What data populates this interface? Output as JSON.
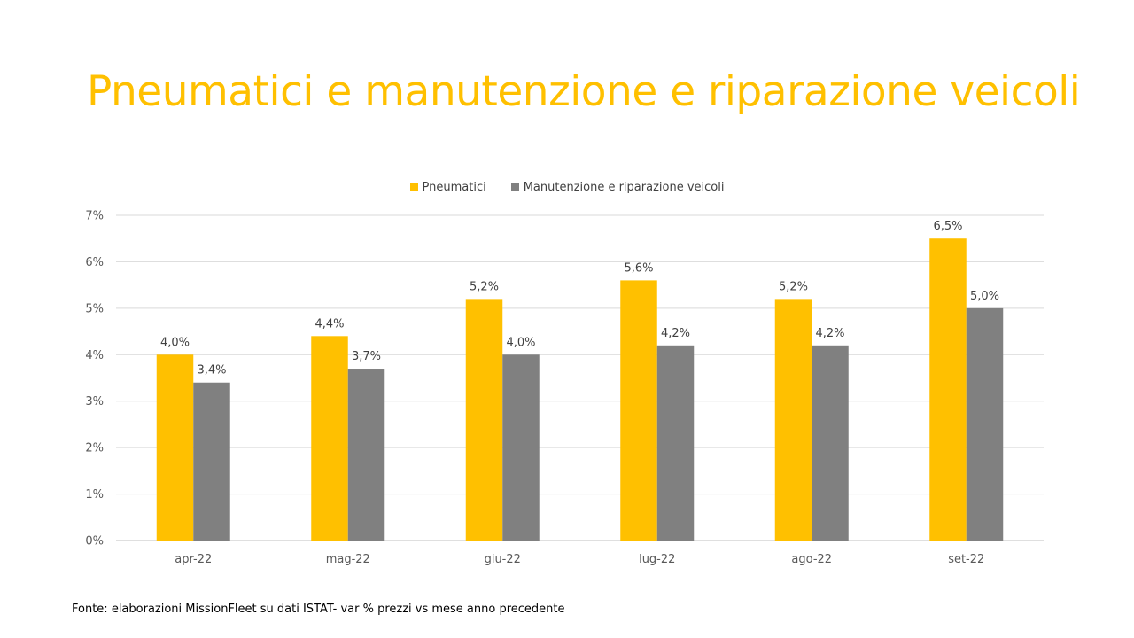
{
  "title": "Pneumatici e manutenzione e riparazione veicoli",
  "chart_data": {
    "type": "bar",
    "categories": [
      "apr-22",
      "mag-22",
      "giu-22",
      "lug-22",
      "ago-22",
      "set-22"
    ],
    "series": [
      {
        "name": "Pneumatici",
        "color": "#FFC000",
        "values": [
          4.0,
          4.4,
          5.2,
          5.6,
          5.2,
          6.5
        ],
        "labels": [
          "4,0%",
          "4,4%",
          "5,2%",
          "5,6%",
          "5,2%",
          "6,5%"
        ]
      },
      {
        "name": "Manutenzione e riparazione veicoli",
        "color": "#808080",
        "values": [
          3.4,
          3.7,
          4.0,
          4.2,
          4.2,
          5.0
        ],
        "labels": [
          "3,4%",
          "3,7%",
          "4,0%",
          "4,2%",
          "4,2%",
          "5,0%"
        ]
      }
    ],
    "y_ticks": [
      "0%",
      "1%",
      "2%",
      "3%",
      "4%",
      "5%",
      "6%",
      "7%"
    ],
    "ylim": [
      0,
      7
    ],
    "grid": true,
    "legend_position": "top"
  },
  "footnote": "Fonte: elaborazioni MissionFleet su dati ISTAT- var % prezzi vs mese anno precedente"
}
